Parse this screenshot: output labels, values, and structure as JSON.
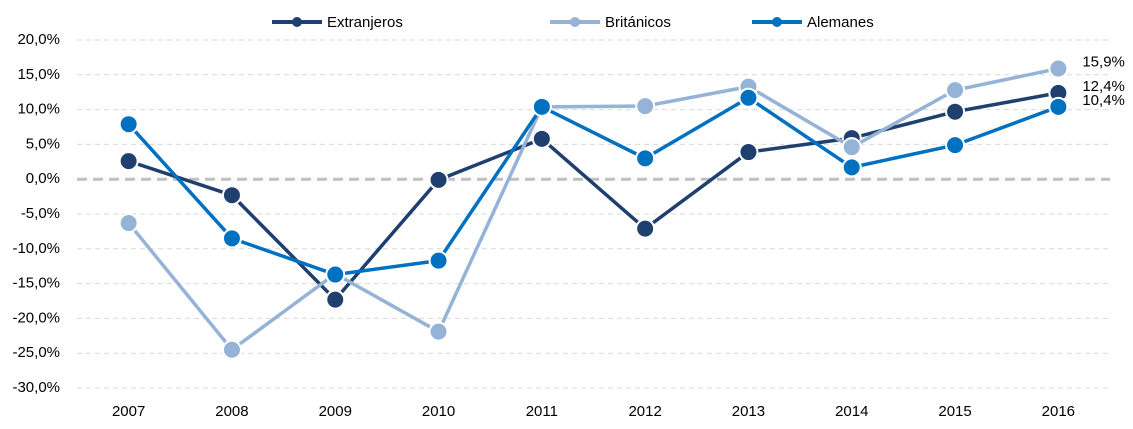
{
  "chart_data": {
    "type": "line",
    "categories": [
      "2007",
      "2008",
      "2009",
      "2010",
      "2011",
      "2012",
      "2013",
      "2014",
      "2015",
      "2016"
    ],
    "series": [
      {
        "name": "Extranjeros",
        "color": "#1f3f6e",
        "values": [
          2.6,
          -2.3,
          -17.3,
          -0.1,
          5.8,
          -7.1,
          3.9,
          5.9,
          9.7,
          12.4
        ],
        "value_labels": [
          null,
          null,
          null,
          null,
          null,
          null,
          null,
          null,
          null,
          "12,4%"
        ]
      },
      {
        "name": "Británicos",
        "color": "#95b3d7",
        "values": [
          -6.3,
          -24.5,
          -13.6,
          -21.9,
          10.4,
          10.5,
          13.3,
          4.6,
          12.8,
          15.9
        ],
        "value_labels": [
          null,
          null,
          null,
          null,
          null,
          null,
          null,
          null,
          null,
          "15,9%"
        ]
      },
      {
        "name": "Alemanes",
        "color": "#0070c0",
        "values": [
          7.9,
          -8.5,
          -13.7,
          -11.7,
          10.4,
          3.0,
          11.7,
          1.7,
          4.9,
          10.4
        ],
        "value_labels": [
          null,
          null,
          null,
          null,
          null,
          null,
          null,
          null,
          null,
          "10,4%"
        ]
      }
    ],
    "ylim": [
      -30,
      20
    ],
    "yticks": [
      {
        "value": -30,
        "label": "-30,0%"
      },
      {
        "value": -25,
        "label": "-25,0%"
      },
      {
        "value": -20,
        "label": "-20,0%"
      },
      {
        "value": -15,
        "label": "-15,0%"
      },
      {
        "value": -10,
        "label": "-10,0%"
      },
      {
        "value": -5,
        "label": "-5,0%"
      },
      {
        "value": 0,
        "label": "0,0%"
      },
      {
        "value": 5,
        "label": "5,0%"
      },
      {
        "value": 10,
        "label": "10,0%"
      },
      {
        "value": 15,
        "label": "15,0%"
      },
      {
        "value": 20,
        "label": "20,0%"
      }
    ],
    "grid": true,
    "legend": "top"
  }
}
